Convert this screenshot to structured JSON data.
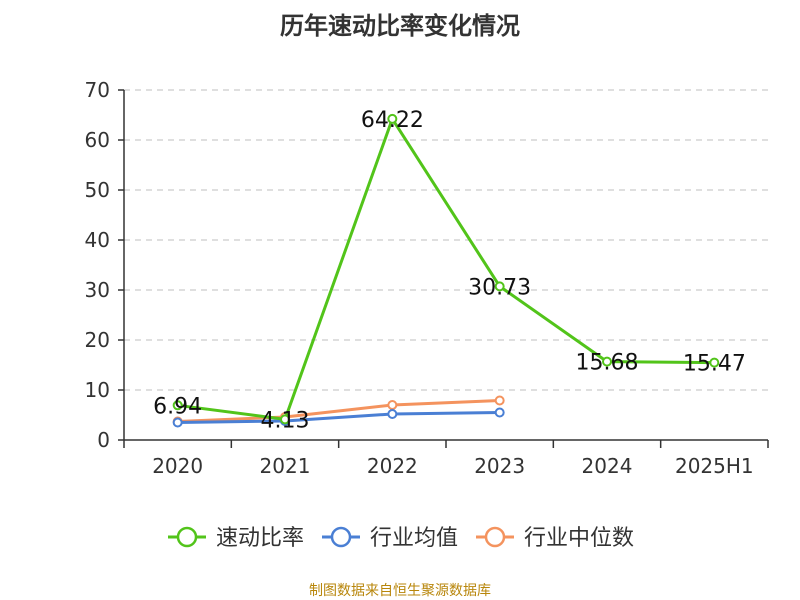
{
  "chart_data": {
    "type": "line",
    "title": "历年速动比率变化情况",
    "categories": [
      "2020",
      "2021",
      "2022",
      "2023",
      "2024",
      "2025H1"
    ],
    "ylim": [
      0,
      70
    ],
    "yticks": [
      0,
      10,
      20,
      30,
      40,
      50,
      60,
      70
    ],
    "grid": true,
    "legend": "bottom",
    "series": [
      {
        "name": "速动比率",
        "color": "#52c41a",
        "values": [
          6.94,
          4.13,
          64.22,
          30.73,
          15.68,
          15.47
        ],
        "labels": [
          "6.94",
          "4.13",
          "64.22",
          "30.73",
          "15.68",
          "15.47"
        ]
      },
      {
        "name": "行业均值",
        "color": "#4a7fd4",
        "values": [
          3.5,
          3.8,
          5.2,
          5.5,
          null,
          null
        ]
      },
      {
        "name": "行业中位数",
        "color": "#f4935e",
        "values": [
          3.7,
          4.6,
          7.0,
          7.9,
          null,
          null
        ]
      }
    ]
  },
  "source": "制图数据来自恒生聚源数据库"
}
